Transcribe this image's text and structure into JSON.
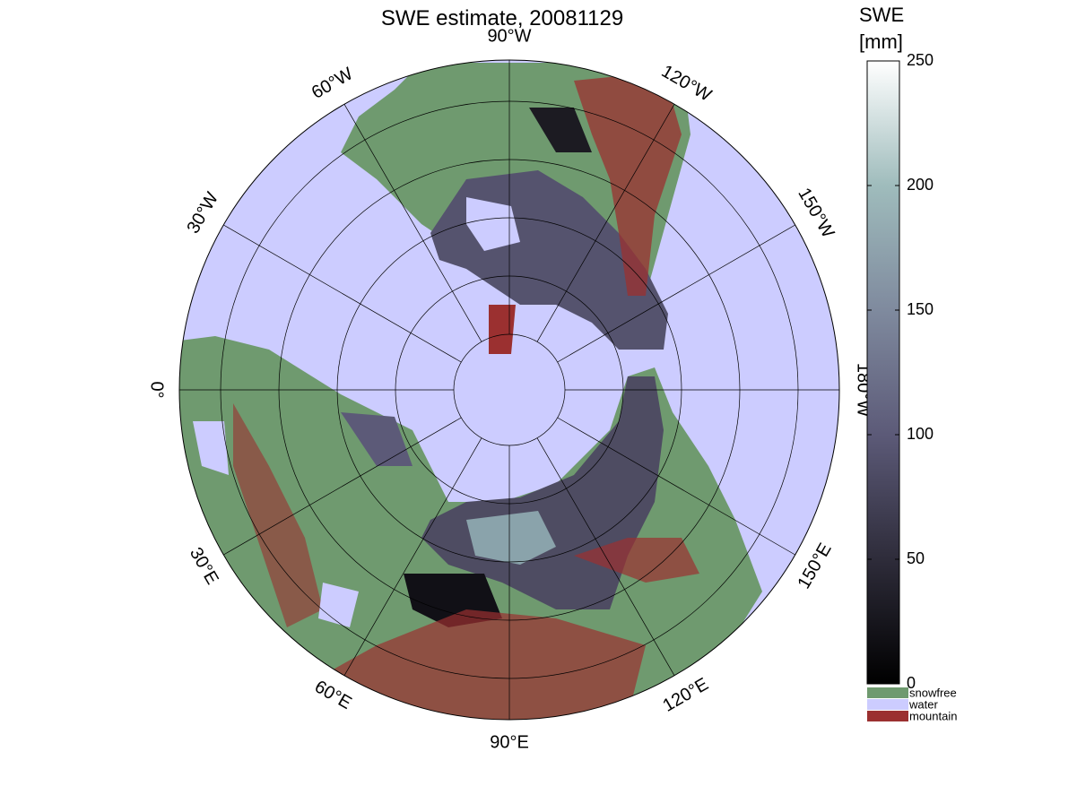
{
  "title": "SWE estimate, 20081129",
  "meridian_labels": [
    "0°",
    "30°E",
    "60°E",
    "90°E",
    "120°E",
    "150°E",
    "180°W",
    "150°W",
    "120°W",
    "90°W",
    "60°W",
    "30°W"
  ],
  "water_color": "#ccccff",
  "colorbar": {
    "label": [
      "SWE",
      "[mm]"
    ],
    "lim": [
      0,
      250
    ],
    "ticks": [
      0,
      50,
      100,
      150,
      200,
      250
    ],
    "colors": [
      "#000000",
      "#2e2c3a",
      "#5c5a78",
      "#7f8a9e",
      "#9fbcbc",
      "#ffffff"
    ]
  },
  "legend": [
    {
      "label": "snowfree",
      "color": "#6f9a6f"
    },
    {
      "label": "water",
      "color": "#ccccff"
    },
    {
      "label": "mountain",
      "color": "#9b3030"
    }
  ]
}
